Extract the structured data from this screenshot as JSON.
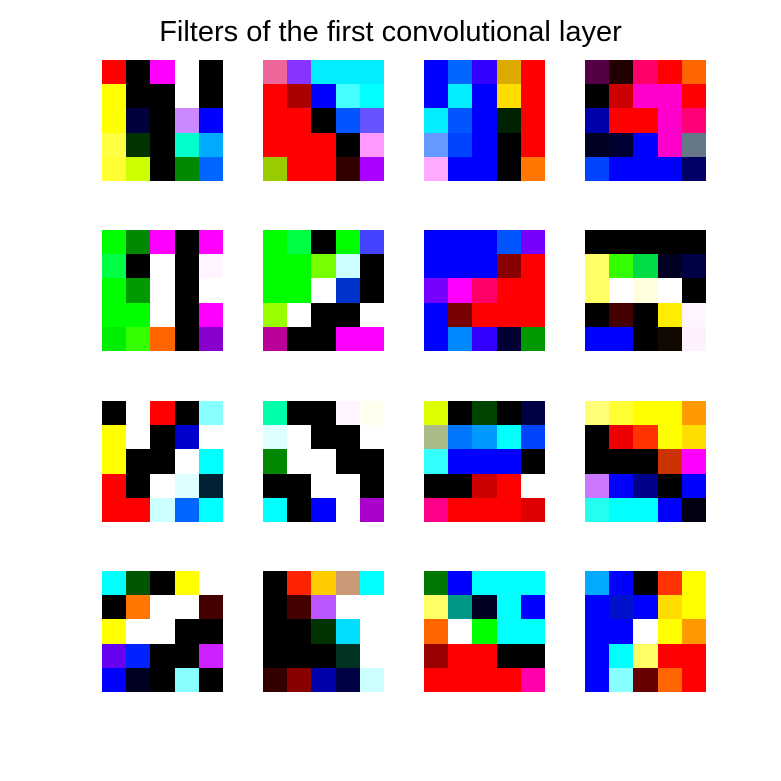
{
  "chart_data": {
    "type": "heatmap",
    "title": "Filters of the first convolutional layer",
    "grid": false,
    "rows": 4,
    "cols": 4,
    "filter_size": [
      5,
      5
    ],
    "filters": [
      [
        [
          "#ff0000",
          "#000000",
          "#ff00ff",
          "#ffffff",
          "#000000"
        ],
        [
          "#ffff00",
          "#000000",
          "#000000",
          "#ffffff",
          "#000000"
        ],
        [
          "#ffff00",
          "#00003a",
          "#000000",
          "#cc88ff",
          "#0000ff"
        ],
        [
          "#ffff44",
          "#003300",
          "#000000",
          "#00ffcc",
          "#00aaff"
        ],
        [
          "#ffff33",
          "#ccff00",
          "#000000",
          "#008800",
          "#0066ff"
        ]
      ],
      [
        [
          "#ee6699",
          "#8833ff",
          "#00eeff",
          "#00eeff",
          "#00eeff"
        ],
        [
          "#ff0000",
          "#aa0000",
          "#0000ff",
          "#44ffff",
          "#00ffff"
        ],
        [
          "#ff0000",
          "#ff0000",
          "#000000",
          "#0055ff",
          "#6655ff"
        ],
        [
          "#ff0000",
          "#ff0000",
          "#ff0000",
          "#000000",
          "#ff99ff"
        ],
        [
          "#99cc00",
          "#ff0000",
          "#ff0000",
          "#330000",
          "#aa00ff"
        ]
      ],
      [
        [
          "#0000ff",
          "#0066ff",
          "#3300ff",
          "#ddaa00",
          "#ff0000"
        ],
        [
          "#0000ff",
          "#00eeff",
          "#0000ff",
          "#ffdd00",
          "#ff0000"
        ],
        [
          "#00eeff",
          "#0055ff",
          "#0000ff",
          "#002200",
          "#ff0000"
        ],
        [
          "#6699ff",
          "#0044ff",
          "#0000ff",
          "#000000",
          "#ff0000"
        ],
        [
          "#ffaaff",
          "#0000ff",
          "#0000ff",
          "#000000",
          "#ff7700"
        ]
      ],
      [
        [
          "#550044",
          "#220000",
          "#ff0066",
          "#ff0000",
          "#ff6600"
        ],
        [
          "#000000",
          "#cc0000",
          "#ff00cc",
          "#ff00cc",
          "#ff0000"
        ],
        [
          "#0000aa",
          "#ff0000",
          "#ff0000",
          "#ff00cc",
          "#ff0077"
        ],
        [
          "#000022",
          "#000033",
          "#0000ff",
          "#ff00cc",
          "#667788"
        ],
        [
          "#0044ff",
          "#0000ff",
          "#0000ff",
          "#0000ff",
          "#000066"
        ]
      ],
      [
        [
          "#00ff00",
          "#008800",
          "#ff00ff",
          "#000000",
          "#ff00ff"
        ],
        [
          "#00ff44",
          "#000000",
          "#ffffff",
          "#000000",
          "#fff4ff"
        ],
        [
          "#00ff00",
          "#009900",
          "#ffffff",
          "#000000",
          "#ffffff"
        ],
        [
          "#00ff00",
          "#00ff00",
          "#ffffff",
          "#000000",
          "#ff00ff"
        ],
        [
          "#00ee00",
          "#33ff00",
          "#ff6600",
          "#000000",
          "#8800cc"
        ]
      ],
      [
        [
          "#00ff00",
          "#00ff44",
          "#000000",
          "#00ff00",
          "#4444ff"
        ],
        [
          "#00ff00",
          "#00ff00",
          "#77ff00",
          "#ccffff",
          "#000000"
        ],
        [
          "#00ff00",
          "#00ff00",
          "#ffffff",
          "#0033cc",
          "#000000"
        ],
        [
          "#99ff00",
          "#ffffff",
          "#000000",
          "#000000",
          "#ffffff"
        ],
        [
          "#bb0099",
          "#000000",
          "#000000",
          "#ff00ff",
          "#ff00ff"
        ]
      ],
      [
        [
          "#0000ff",
          "#0000ff",
          "#0000ff",
          "#0055ff",
          "#7700ff"
        ],
        [
          "#0000ff",
          "#0000ff",
          "#0000ff",
          "#880000",
          "#ff0000"
        ],
        [
          "#7700ff",
          "#ff00ff",
          "#ff0066",
          "#ff0000",
          "#ff0000"
        ],
        [
          "#0000ff",
          "#770000",
          "#ff0000",
          "#ff0000",
          "#ff0000"
        ],
        [
          "#0000ff",
          "#0088ff",
          "#3300ff",
          "#000033",
          "#009900"
        ]
      ],
      [
        [
          "#000000",
          "#000000",
          "#000000",
          "#000000",
          "#000000"
        ],
        [
          "#ffff66",
          "#33ff00",
          "#00dd44",
          "#000022",
          "#000044"
        ],
        [
          "#ffff66",
          "#ffffff",
          "#ffffdd",
          "#ffffff",
          "#000000"
        ],
        [
          "#000000",
          "#440000",
          "#000000",
          "#ffee00",
          "#fff4ff"
        ],
        [
          "#0000ff",
          "#0000ff",
          "#000000",
          "#110800",
          "#fff0ff"
        ]
      ],
      [
        [
          "#000000",
          "#ffffff",
          "#ff0000",
          "#000000",
          "#88ffff"
        ],
        [
          "#ffff00",
          "#ffffff",
          "#000000",
          "#0000cc",
          "#ffffff"
        ],
        [
          "#ffff00",
          "#000000",
          "#000000",
          "#ffffff",
          "#00ffff"
        ],
        [
          "#ff0000",
          "#000000",
          "#ffffff",
          "#ddffff",
          "#002233"
        ],
        [
          "#ff0000",
          "#ff0000",
          "#ccffff",
          "#0066ff",
          "#00ffff"
        ]
      ],
      [
        [
          "#00ffaa",
          "#000000",
          "#000000",
          "#fff4ff",
          "#ffffee"
        ],
        [
          "#ddffff",
          "#ffffff",
          "#000000",
          "#000000",
          "#ffffff"
        ],
        [
          "#008800",
          "#ffffff",
          "#ffffff",
          "#000000",
          "#000000"
        ],
        [
          "#000000",
          "#000000",
          "#ffffff",
          "#ffffff",
          "#000000"
        ],
        [
          "#00ffff",
          "#000000",
          "#0000ff",
          "#ffffff",
          "#aa00cc"
        ]
      ],
      [
        [
          "#ddff00",
          "#000000",
          "#004400",
          "#000000",
          "#000044"
        ],
        [
          "#aabb88",
          "#0077ff",
          "#0099ff",
          "#00ffff",
          "#0044ff"
        ],
        [
          "#33ffff",
          "#0000ff",
          "#0000ff",
          "#0000ff",
          "#000000"
        ],
        [
          "#000000",
          "#000000",
          "#cc0000",
          "#ff0000",
          "#ffffff"
        ],
        [
          "#ff0088",
          "#ff0000",
          "#ff0000",
          "#ff0000",
          "#dd0000"
        ]
      ],
      [
        [
          "#ffff77",
          "#ffff33",
          "#ffff00",
          "#ffff00",
          "#ff9900"
        ],
        [
          "#000000",
          "#ee0000",
          "#ff3300",
          "#ffff00",
          "#ffdd00"
        ],
        [
          "#000000",
          "#000000",
          "#000000",
          "#cc3300",
          "#ff00ff"
        ],
        [
          "#cc77ff",
          "#0000ff",
          "#000088",
          "#000000",
          "#0000ff"
        ],
        [
          "#22ffee",
          "#00ffff",
          "#00ffff",
          "#0000ff",
          "#000011"
        ]
      ],
      [
        [
          "#00ffff",
          "#005500",
          "#000000",
          "#ffff00",
          "#ffffff"
        ],
        [
          "#000000",
          "#ff7700",
          "#ffffff",
          "#ffffff",
          "#440000"
        ],
        [
          "#ffff00",
          "#ffffff",
          "#ffffff",
          "#000000",
          "#000000"
        ],
        [
          "#6600ee",
          "#0022ff",
          "#000000",
          "#000000",
          "#cc22ff"
        ],
        [
          "#0000ff",
          "#000022",
          "#000000",
          "#88ffff",
          "#000000"
        ]
      ],
      [
        [
          "#000000",
          "#ff2200",
          "#ffcc00",
          "#cc9977",
          "#00ffff"
        ],
        [
          "#000000",
          "#440000",
          "#bb55ff",
          "#ffffff",
          "#ffffff"
        ],
        [
          "#000000",
          "#000000",
          "#003300",
          "#00ddff",
          "#ffffff"
        ],
        [
          "#000000",
          "#000000",
          "#000000",
          "#003322",
          "#ffffff"
        ],
        [
          "#330000",
          "#880000",
          "#0000aa",
          "#000044",
          "#ccffff"
        ]
      ],
      [
        [
          "#007700",
          "#0000ff",
          "#00ffff",
          "#00ffff",
          "#00ffff"
        ],
        [
          "#ffff66",
          "#009988",
          "#000022",
          "#00ffff",
          "#0000ff"
        ],
        [
          "#ff6600",
          "#ffffff",
          "#00ff00",
          "#00ffff",
          "#00ffff"
        ],
        [
          "#990000",
          "#ff0000",
          "#ff0000",
          "#000000",
          "#000000"
        ],
        [
          "#ff0000",
          "#ff0000",
          "#ff0000",
          "#ff0000",
          "#ff00aa"
        ]
      ],
      [
        [
          "#00aaff",
          "#0000ff",
          "#000000",
          "#ff3300",
          "#ffff00"
        ],
        [
          "#0000ff",
          "#0011cc",
          "#0000ff",
          "#ffdd00",
          "#ffff00"
        ],
        [
          "#0000ff",
          "#0000ff",
          "#ffffff",
          "#ffff00",
          "#ff9900"
        ],
        [
          "#0000ff",
          "#00ffff",
          "#ffff66",
          "#ff0000",
          "#ff0000"
        ],
        [
          "#0000ff",
          "#88ffff",
          "#660000",
          "#ff6600",
          "#ff0000"
        ]
      ]
    ]
  }
}
